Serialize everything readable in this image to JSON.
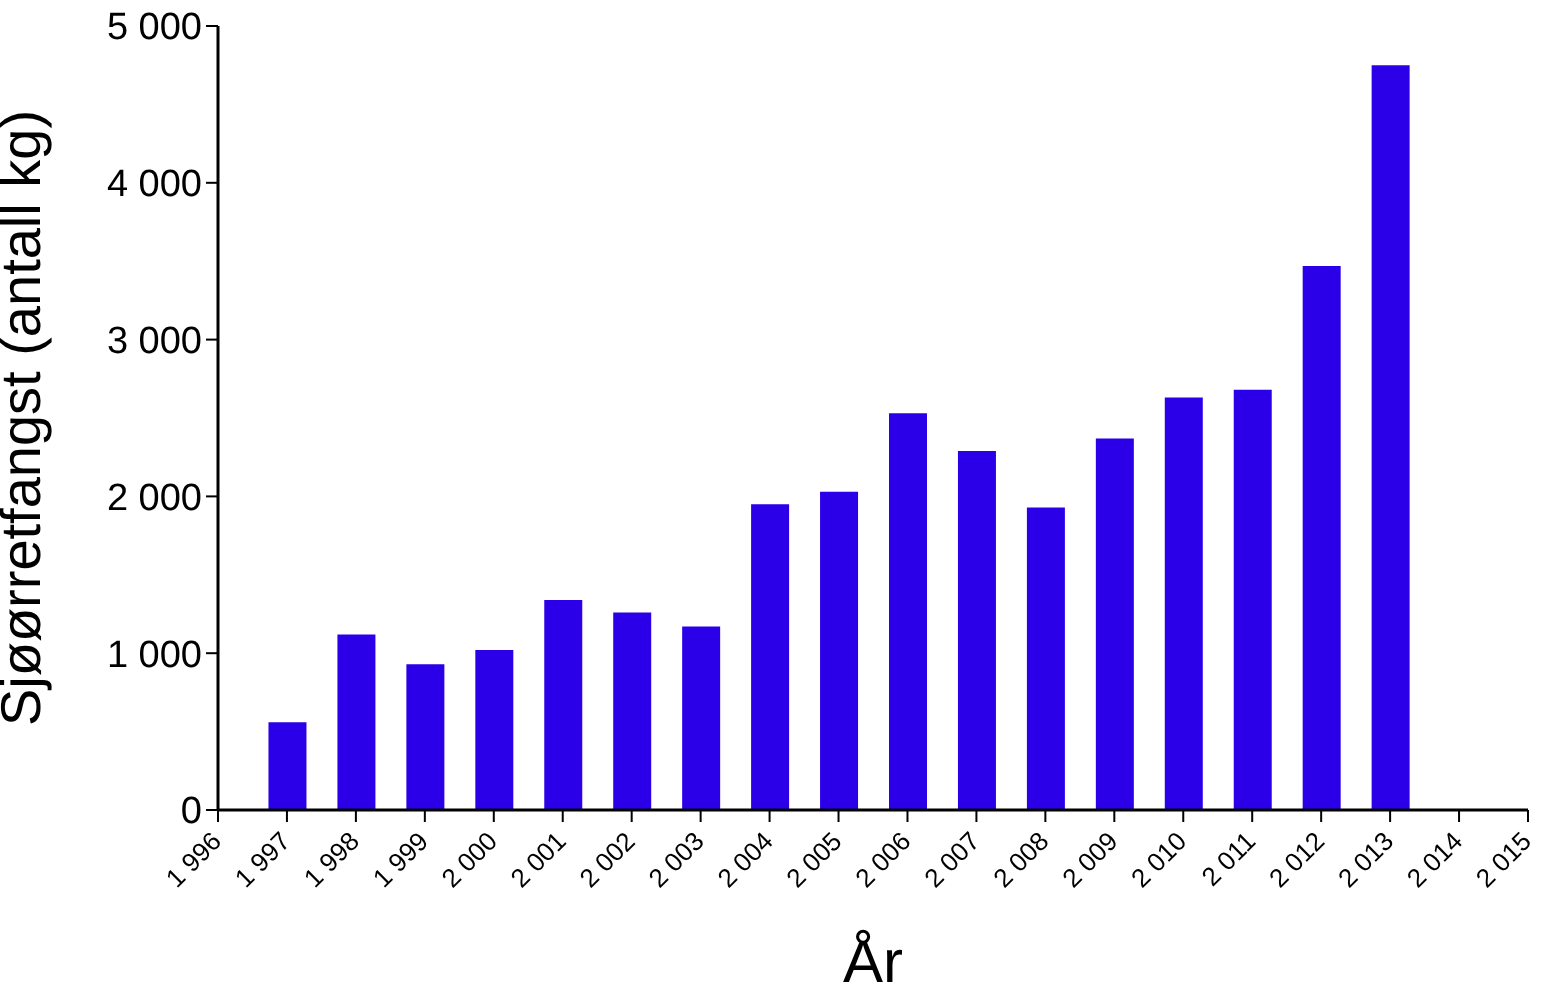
{
  "chart_data": {
    "type": "bar",
    "xlabel": "År",
    "ylabel": "Sjøørretfangst (antall kg)",
    "x": [
      1997,
      1998,
      1999,
      2000,
      2001,
      2002,
      2003,
      2004,
      2005,
      2006,
      2007,
      2008,
      2009,
      2010,
      2011,
      2012,
      2013
    ],
    "values": [
      560,
      1120,
      930,
      1020,
      1340,
      1260,
      1170,
      1950,
      2030,
      2530,
      2290,
      1930,
      2370,
      2630,
      2680,
      3470,
      4750
    ],
    "color": "#2b00e8",
    "xlim": [
      1996,
      2015
    ],
    "xticks": [
      {
        "value": 1996,
        "label": "1 996"
      },
      {
        "value": 1997,
        "label": "1 997"
      },
      {
        "value": 1998,
        "label": "1 998"
      },
      {
        "value": 1999,
        "label": "1 999"
      },
      {
        "value": 2000,
        "label": "2 000"
      },
      {
        "value": 2001,
        "label": "2 001"
      },
      {
        "value": 2002,
        "label": "2 002"
      },
      {
        "value": 2003,
        "label": "2 003"
      },
      {
        "value": 2004,
        "label": "2 004"
      },
      {
        "value": 2005,
        "label": "2 005"
      },
      {
        "value": 2006,
        "label": "2 006"
      },
      {
        "value": 2007,
        "label": "2 007"
      },
      {
        "value": 2008,
        "label": "2 008"
      },
      {
        "value": 2009,
        "label": "2 009"
      },
      {
        "value": 2010,
        "label": "2 010"
      },
      {
        "value": 2011,
        "label": "2 011"
      },
      {
        "value": 2012,
        "label": "2 012"
      },
      {
        "value": 2013,
        "label": "2 013"
      },
      {
        "value": 2014,
        "label": "2 014"
      },
      {
        "value": 2015,
        "label": "2 015"
      }
    ],
    "ylim": [
      0,
      5000
    ],
    "yticks": [
      0,
      {
        "value": 1000,
        "label": "1 000"
      },
      {
        "value": 2000,
        "label": "2 000"
      },
      {
        "value": 3000,
        "label": "3 000"
      },
      {
        "value": 4000,
        "label": "4 000"
      },
      {
        "value": 5000,
        "label": "5 000"
      }
    ],
    "grid": false,
    "legend": false
  }
}
